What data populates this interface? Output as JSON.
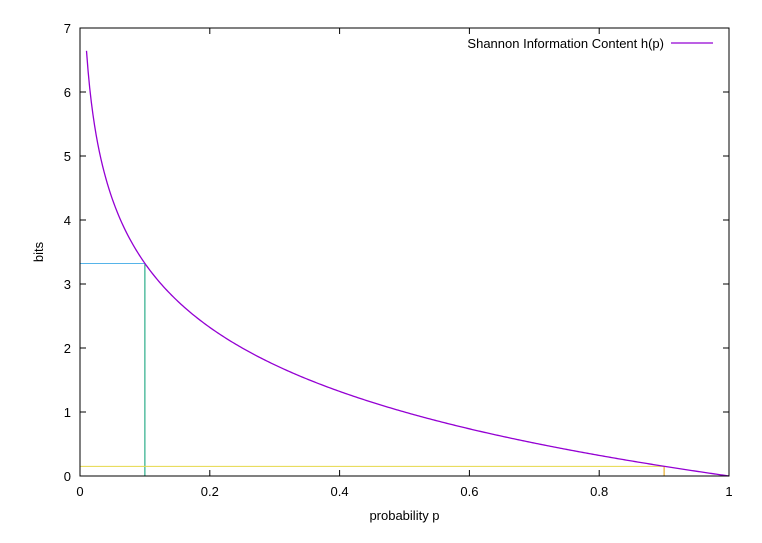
{
  "chart_data": {
    "type": "line",
    "title": "",
    "xlabel": "probability p",
    "ylabel": "bits",
    "xlim": [
      0,
      1
    ],
    "ylim": [
      0,
      7
    ],
    "xticks": [
      "0",
      "0.2",
      "0.4",
      "0.6",
      "0.8",
      "1"
    ],
    "yticks": [
      "0",
      "1",
      "2",
      "3",
      "4",
      "5",
      "6",
      "7"
    ],
    "grid": false,
    "legend_position": "top-right",
    "series": [
      {
        "name": "Shannon Information Content h(p)",
        "color": "#9400d3",
        "function": "-log2(p)",
        "x": [
          0.01,
          0.02,
          0.03,
          0.04,
          0.05,
          0.06,
          0.08,
          0.1,
          0.12,
          0.15,
          0.2,
          0.25,
          0.3,
          0.35,
          0.4,
          0.45,
          0.5,
          0.55,
          0.6,
          0.65,
          0.7,
          0.75,
          0.8,
          0.85,
          0.9,
          0.95,
          1.0
        ],
        "y": [
          6.64,
          5.64,
          5.06,
          4.64,
          4.32,
          4.06,
          3.64,
          3.32,
          3.06,
          2.74,
          2.32,
          2.0,
          1.74,
          1.51,
          1.32,
          1.15,
          1.0,
          0.86,
          0.74,
          0.62,
          0.51,
          0.42,
          0.32,
          0.23,
          0.15,
          0.07,
          0.0
        ]
      }
    ],
    "annotations": [
      {
        "type": "vline",
        "x": 0.1,
        "y_from": 0,
        "y_to": 3.32,
        "color": "#009e73"
      },
      {
        "type": "hline",
        "y": 3.32,
        "x_from": 0,
        "x_to": 0.1,
        "color": "#56b4e9"
      },
      {
        "type": "hline",
        "y": 0.15,
        "x_from": 0,
        "x_to": 0.9,
        "color": "#e6d84a"
      },
      {
        "type": "vline",
        "x": 0.9,
        "y_from": 0,
        "y_to": 0.15,
        "color": "#e69f00"
      }
    ]
  }
}
